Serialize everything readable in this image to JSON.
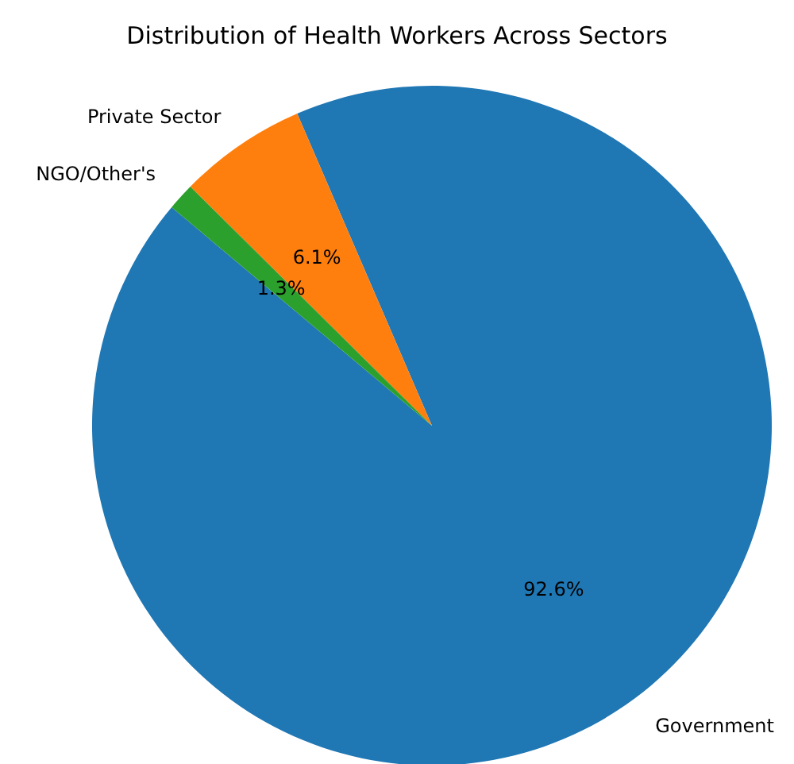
{
  "chart_data": {
    "type": "pie",
    "title": "Distribution of Health Workers Across Sectors",
    "categories": [
      "Government",
      "Private Sector",
      "NGO/Other's"
    ],
    "values": [
      92.6,
      6.1,
      1.3
    ],
    "colors": [
      "#1f77b4",
      "#ff7f0e",
      "#2ca02c"
    ],
    "value_labels": [
      "92.6%",
      "6.1%",
      "1.3%"
    ],
    "legend": false
  }
}
